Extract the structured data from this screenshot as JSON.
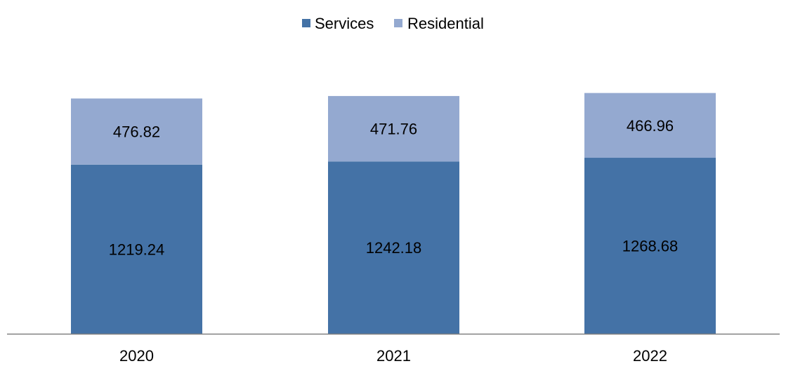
{
  "chart_data": {
    "type": "bar",
    "stacked": true,
    "categories": [
      "2020",
      "2021",
      "2022"
    ],
    "series": [
      {
        "name": "Services",
        "values": [
          1219.24,
          1242.18,
          1268.68
        ],
        "labels": [
          "1219.24",
          "1242.18",
          "1268.68"
        ],
        "color": "#4472a6"
      },
      {
        "name": "Residential",
        "values": [
          476.82,
          471.76,
          466.96
        ],
        "labels": [
          "476.82",
          "471.76",
          "466.96"
        ],
        "color": "#94a9d0"
      }
    ],
    "ylim": [
      0,
      2000
    ],
    "grid": false,
    "legend": "top-center",
    "axis_color": "#808080"
  }
}
